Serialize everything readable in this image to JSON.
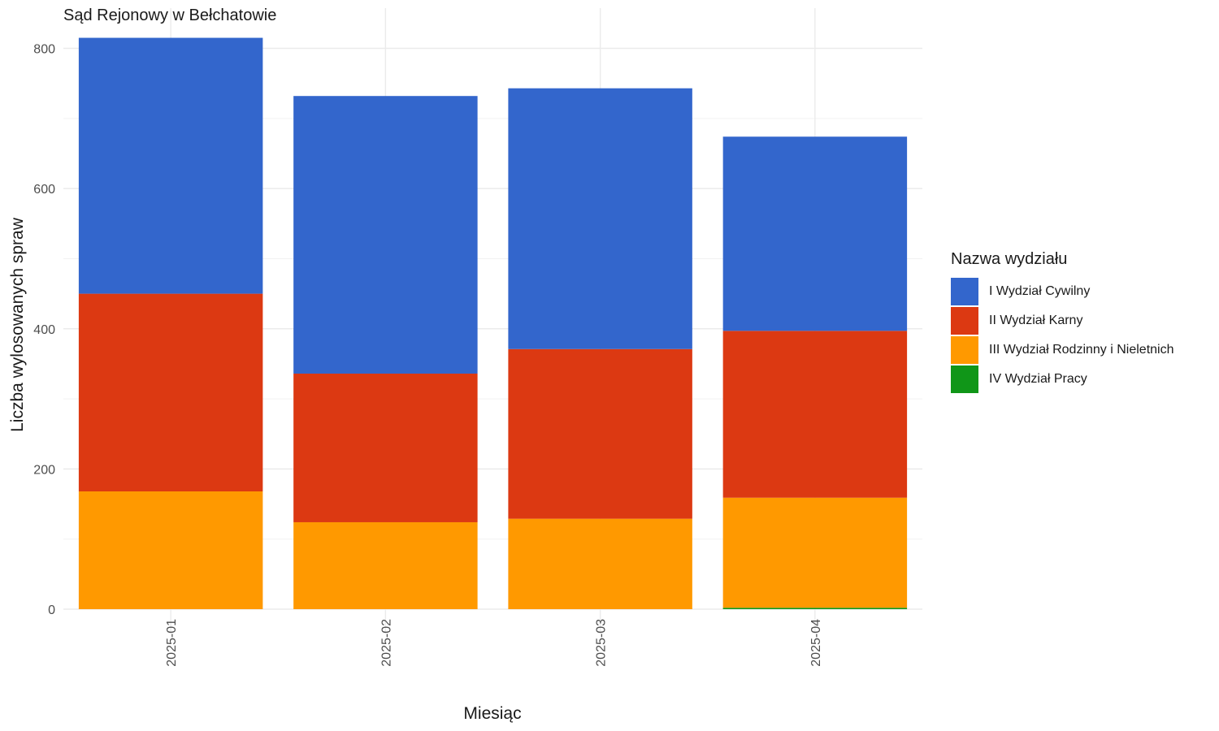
{
  "chart_data": {
    "type": "bar",
    "stacked": true,
    "title": "Sąd Rejonowy w Bełchatowie",
    "xlabel": "Miesiąc",
    "ylabel": "Liczba wylosowanych spraw",
    "categories": [
      "2025-01",
      "2025-02",
      "2025-03",
      "2025-04"
    ],
    "ylim": [
      0,
      815
    ],
    "yticks": [
      0,
      200,
      400,
      600,
      800
    ],
    "grid": true,
    "legend_title": "Nazwa wydziału",
    "legend_position": "right",
    "series": [
      {
        "name": "I Wydział Cywilny",
        "color": "#3366CC",
        "values": [
          365,
          396,
          372,
          277
        ]
      },
      {
        "name": "II Wydział Karny",
        "color": "#DC3912",
        "values": [
          282,
          212,
          242,
          238
        ]
      },
      {
        "name": "III Wydział Rodzinny i Nieletnich",
        "color": "#FF9900",
        "values": [
          168,
          124,
          129,
          157
        ]
      },
      {
        "name": "IV Wydział Pracy",
        "color": "#109618",
        "values": [
          0,
          0,
          0,
          2
        ]
      }
    ]
  }
}
